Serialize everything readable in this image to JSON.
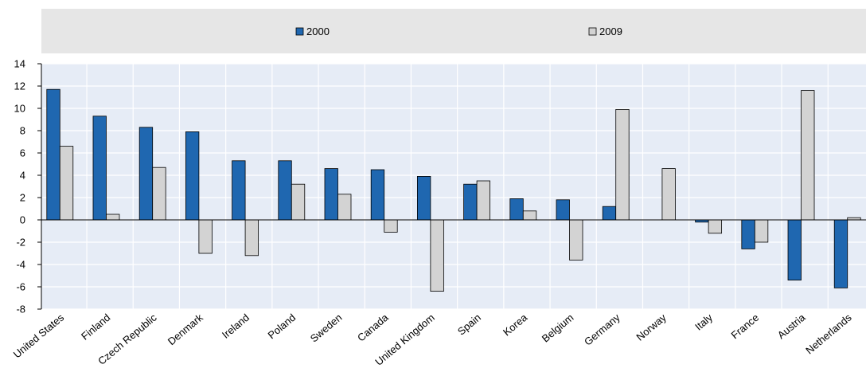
{
  "chart_data": {
    "type": "bar",
    "categories": [
      "United States",
      "Finland",
      "Czech Republic",
      "Denmark",
      "Ireland",
      "Poland",
      "Sweden",
      "Canada",
      "United Kingdom",
      "Spain",
      "Korea",
      "Belgium",
      "Germany",
      "Norway",
      "Italy",
      "France",
      "Austria",
      "Netherlands"
    ],
    "series": [
      {
        "name": "2000",
        "color": "#1f67b0",
        "values": [
          11.7,
          9.3,
          8.3,
          7.9,
          5.3,
          5.3,
          4.6,
          4.5,
          3.9,
          3.2,
          1.9,
          1.8,
          1.2,
          null,
          -0.2,
          -2.6,
          -5.4,
          -6.1
        ]
      },
      {
        "name": "2009",
        "color": "#d3d3d3",
        "values": [
          6.6,
          0.5,
          4.7,
          -3.0,
          -3.2,
          3.2,
          2.3,
          -1.1,
          -6.4,
          3.5,
          0.8,
          -3.6,
          9.9,
          4.6,
          -1.2,
          -2.0,
          11.6,
          0.2
        ]
      }
    ],
    "ylim": [
      -8,
      14
    ],
    "yticks": [
      -8,
      -6,
      -4,
      -2,
      0,
      2,
      4,
      6,
      8,
      10,
      12,
      14
    ],
    "title": "",
    "xlabel": "",
    "ylabel": "",
    "grid": true,
    "legend_position": "top",
    "plot_background": "#e6ecf6",
    "legend_background": "#e6e6e6"
  }
}
